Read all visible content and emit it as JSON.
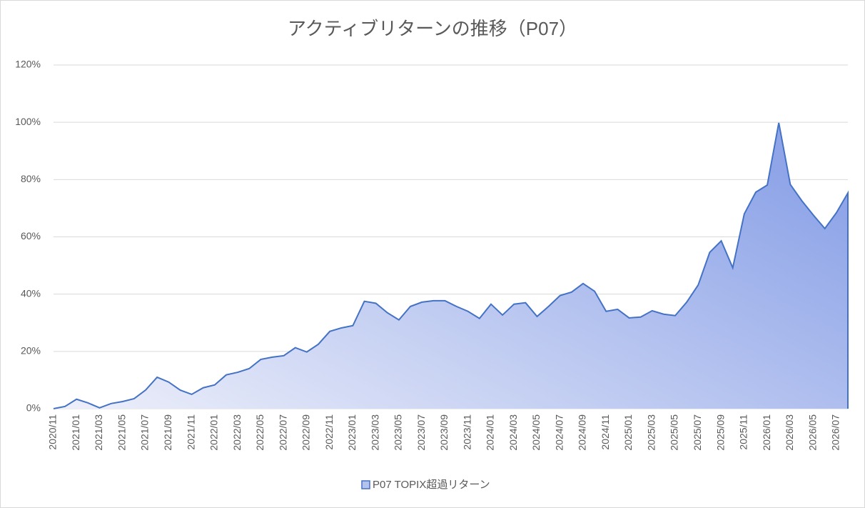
{
  "chart_data": {
    "type": "area",
    "title": "アクティブリターンの推移（P07）",
    "categories": [
      "2020/11",
      null,
      "2021/01",
      null,
      "2021/03",
      null,
      "2021/05",
      null,
      "2021/07",
      null,
      "2021/09",
      null,
      "2021/11",
      null,
      "2022/01",
      null,
      "2022/03",
      null,
      "2022/05",
      null,
      "2022/07",
      null,
      "2022/09",
      null,
      "2022/11",
      null,
      "2023/01",
      null,
      "2023/03",
      null,
      "2023/05",
      null,
      "2023/07",
      null,
      "2023/09",
      null,
      "2023/11",
      null,
      "2024/01",
      null,
      "2024/03",
      null,
      "2024/05",
      null,
      "2024/07",
      null,
      "2024/09",
      null,
      "2024/11",
      null,
      "2025/01",
      null,
      "2025/03",
      null,
      "2025/05",
      null,
      "2025/07",
      null,
      "2025/09",
      null,
      "2025/11",
      null,
      "2026/01",
      null,
      "2026/03",
      null,
      "2026/05",
      null,
      "2026/07",
      null
    ],
    "series": [
      {
        "name": "P07 TOPIX超過リターン",
        "color": "#4472c4",
        "values": [
          0,
          0.8,
          3.3,
          2,
          0.3,
          1.8,
          2.5,
          3.5,
          6.5,
          11,
          9.3,
          6.5,
          5,
          7.3,
          8.3,
          11.8,
          12.7,
          14,
          17.2,
          18,
          18.5,
          21.3,
          19.8,
          22.5,
          27,
          28.2,
          29,
          37.5,
          36.8,
          33.5,
          31,
          35.7,
          37.2,
          37.7,
          37.7,
          35.7,
          34,
          31.5,
          36.5,
          32.7,
          36.5,
          37,
          32.2,
          35.7,
          39.5,
          40.7,
          43.7,
          41,
          34,
          34.7,
          31.7,
          32,
          34.2,
          33,
          32.5,
          37.2,
          43.2,
          54.6,
          58.6,
          49.2,
          68,
          75.6,
          78.1,
          99.8,
          78.3,
          72.6,
          67.6,
          62.9,
          68.4,
          75.3
        ]
      }
    ],
    "ylim": [
      0,
      120
    ],
    "yticks": [
      {
        "value": 0,
        "label": "0%"
      },
      {
        "value": 20,
        "label": "20%"
      },
      {
        "value": 40,
        "label": "40%"
      },
      {
        "value": 60,
        "label": "60%"
      },
      {
        "value": 80,
        "label": "80%"
      },
      {
        "value": 100,
        "label": "100%"
      },
      {
        "value": 120,
        "label": "120%"
      }
    ],
    "grid": true,
    "legend": "bottom"
  }
}
